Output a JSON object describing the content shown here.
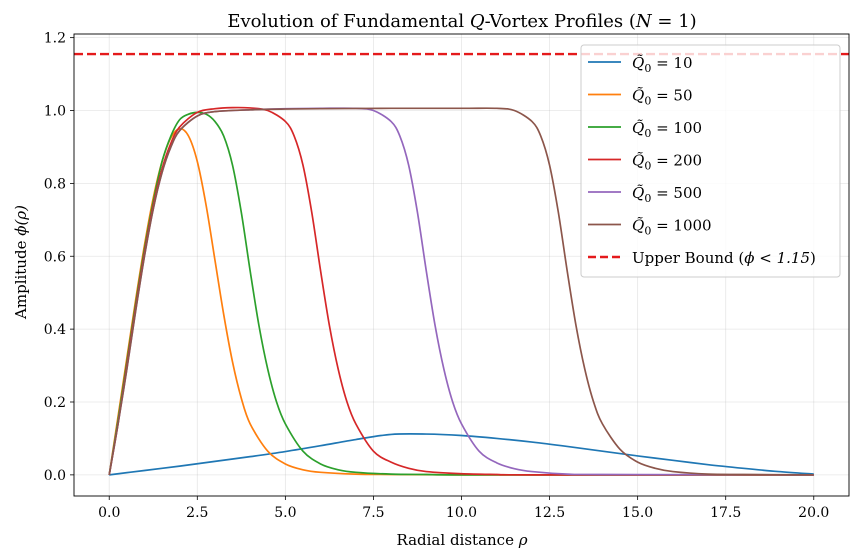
{
  "chart_data": {
    "type": "line",
    "title": "Evolution of Fundamental Q-Vortex Profiles (N = 1)",
    "title_parts": {
      "prefix": "Evolution of Fundamental ",
      "q": "Q",
      "middle": "-Vortex Profiles (",
      "n": "N",
      "suffix": " = 1)"
    },
    "xlabel": "Radial distance ρ",
    "xlabel_parts": {
      "text": "Radial distance ",
      "sym": "ρ"
    },
    "ylabel": "Amplitude ϕ(ρ)",
    "ylabel_parts": {
      "text": "Amplitude ",
      "sym": "ϕ(ρ)"
    },
    "xlim": [
      -1.0,
      21.0
    ],
    "ylim": [
      -0.058,
      1.21
    ],
    "xticks": [
      0.0,
      2.5,
      5.0,
      7.5,
      10.0,
      12.5,
      15.0,
      17.5,
      20.0
    ],
    "xtick_labels": [
      "0.0",
      "2.5",
      "5.0",
      "7.5",
      "10.0",
      "12.5",
      "15.0",
      "17.5",
      "20.0"
    ],
    "yticks": [
      0.0,
      0.2,
      0.4,
      0.6,
      0.8,
      1.0,
      1.2
    ],
    "ytick_labels": [
      "0.0",
      "0.2",
      "0.4",
      "0.6",
      "0.8",
      "1.0",
      "1.2"
    ],
    "grid": true,
    "legend_position": "top-right",
    "series": [
      {
        "name": "Q̃0 = 10",
        "q_value": "10",
        "color": "#1f77b4",
        "x": [
          0,
          1,
          2,
          3,
          4,
          5,
          6,
          7,
          8,
          9,
          10,
          11,
          12,
          13,
          14,
          15,
          16,
          17,
          18,
          19,
          20
        ],
        "y": [
          0,
          0.012,
          0.024,
          0.037,
          0.05,
          0.064,
          0.08,
          0.097,
          0.111,
          0.112,
          0.108,
          0.1,
          0.09,
          0.078,
          0.065,
          0.052,
          0.04,
          0.028,
          0.018,
          0.009,
          0.002
        ]
      },
      {
        "name": "Q̃0 = 50",
        "q_value": "50",
        "color": "#ff7f0e",
        "x": [
          0,
          0.25,
          0.5,
          0.75,
          1.0,
          1.25,
          1.5,
          1.75,
          2.0,
          2.25,
          2.5,
          2.75,
          3.0,
          3.25,
          3.5,
          3.75,
          4.0,
          4.5,
          5.0,
          5.5,
          6.0,
          7.0,
          8.0,
          10.0,
          15.0,
          20.0
        ],
        "y": [
          0,
          0.16,
          0.32,
          0.48,
          0.63,
          0.76,
          0.86,
          0.925,
          0.95,
          0.93,
          0.86,
          0.74,
          0.59,
          0.44,
          0.31,
          0.21,
          0.14,
          0.065,
          0.03,
          0.014,
          0.007,
          0.002,
          0.001,
          0.0,
          0.0,
          0.0
        ]
      },
      {
        "name": "Q̃0 = 100",
        "q_value": "100",
        "color": "#2ca02c",
        "x": [
          0,
          0.25,
          0.5,
          0.75,
          1.0,
          1.25,
          1.5,
          1.75,
          2.0,
          2.25,
          2.5,
          2.75,
          3.0,
          3.25,
          3.5,
          3.75,
          4.0,
          4.25,
          4.5,
          4.75,
          5.0,
          5.5,
          6.0,
          6.5,
          7.0,
          8.0,
          9.0,
          10.0,
          15.0,
          20.0
        ],
        "y": [
          0,
          0.15,
          0.31,
          0.47,
          0.62,
          0.75,
          0.86,
          0.93,
          0.975,
          0.99,
          0.995,
          0.99,
          0.97,
          0.93,
          0.85,
          0.72,
          0.56,
          0.41,
          0.29,
          0.2,
          0.14,
          0.065,
          0.03,
          0.014,
          0.007,
          0.002,
          0.001,
          0.0,
          0.0,
          0.0
        ]
      },
      {
        "name": "Q̃0 = 200",
        "q_value": "200",
        "color": "#d62728",
        "x": [
          0,
          0.25,
          0.5,
          0.75,
          1.0,
          1.25,
          1.5,
          1.75,
          2.0,
          2.5,
          3.0,
          3.5,
          4.0,
          4.5,
          5.0,
          5.25,
          5.5,
          5.75,
          6.0,
          6.25,
          6.5,
          6.75,
          7.0,
          7.5,
          8.0,
          8.5,
          9.0,
          10.0,
          11.0,
          12.0,
          20.0
        ],
        "y": [
          0,
          0.14,
          0.3,
          0.46,
          0.61,
          0.74,
          0.84,
          0.91,
          0.955,
          0.995,
          1.005,
          1.008,
          1.007,
          1.0,
          0.97,
          0.93,
          0.85,
          0.72,
          0.56,
          0.41,
          0.29,
          0.2,
          0.14,
          0.065,
          0.035,
          0.018,
          0.009,
          0.003,
          0.001,
          0.0,
          0.0
        ]
      },
      {
        "name": "Q̃0 = 500",
        "q_value": "500",
        "color": "#9467bd",
        "x": [
          0,
          0.25,
          0.5,
          0.75,
          1.0,
          1.25,
          1.5,
          1.75,
          2.0,
          2.5,
          3.0,
          4.0,
          5.0,
          6.0,
          7.0,
          7.5,
          8.0,
          8.25,
          8.5,
          8.75,
          9.0,
          9.25,
          9.5,
          9.75,
          10.0,
          10.5,
          11.0,
          11.5,
          12.0,
          13.0,
          14.0,
          20.0
        ],
        "y": [
          0,
          0.14,
          0.29,
          0.45,
          0.6,
          0.73,
          0.83,
          0.9,
          0.945,
          0.985,
          0.997,
          1.002,
          1.005,
          1.006,
          1.006,
          1.0,
          0.97,
          0.93,
          0.85,
          0.72,
          0.56,
          0.41,
          0.29,
          0.2,
          0.14,
          0.065,
          0.033,
          0.017,
          0.009,
          0.002,
          0.001,
          0.0
        ]
      },
      {
        "name": "Q̃0 = 1000",
        "q_value": "1000",
        "color": "#8c564b",
        "x": [
          0,
          0.25,
          0.5,
          0.75,
          1.0,
          1.25,
          1.5,
          1.75,
          2.0,
          2.5,
          3.0,
          4.0,
          5.0,
          6.0,
          8.0,
          10.0,
          11.0,
          11.5,
          12.0,
          12.25,
          12.5,
          12.75,
          13.0,
          13.25,
          13.5,
          13.75,
          14.0,
          14.5,
          15.0,
          15.5,
          16.0,
          17.0,
          18.0,
          20.0
        ],
        "y": [
          0,
          0.14,
          0.29,
          0.45,
          0.6,
          0.73,
          0.83,
          0.9,
          0.945,
          0.985,
          0.997,
          1.002,
          1.004,
          1.005,
          1.006,
          1.006,
          1.006,
          1.0,
          0.97,
          0.93,
          0.85,
          0.72,
          0.56,
          0.41,
          0.29,
          0.2,
          0.14,
          0.07,
          0.035,
          0.018,
          0.009,
          0.002,
          0.001,
          0.0
        ]
      }
    ],
    "reference_line": {
      "name": "Upper Bound (ϕ < 1.15)",
      "label_text": "Upper Bound (",
      "label_sym": "ϕ < 1.15",
      "label_close": ")",
      "y": 1.155,
      "color": "#e41a1c",
      "style": "dashed"
    }
  }
}
